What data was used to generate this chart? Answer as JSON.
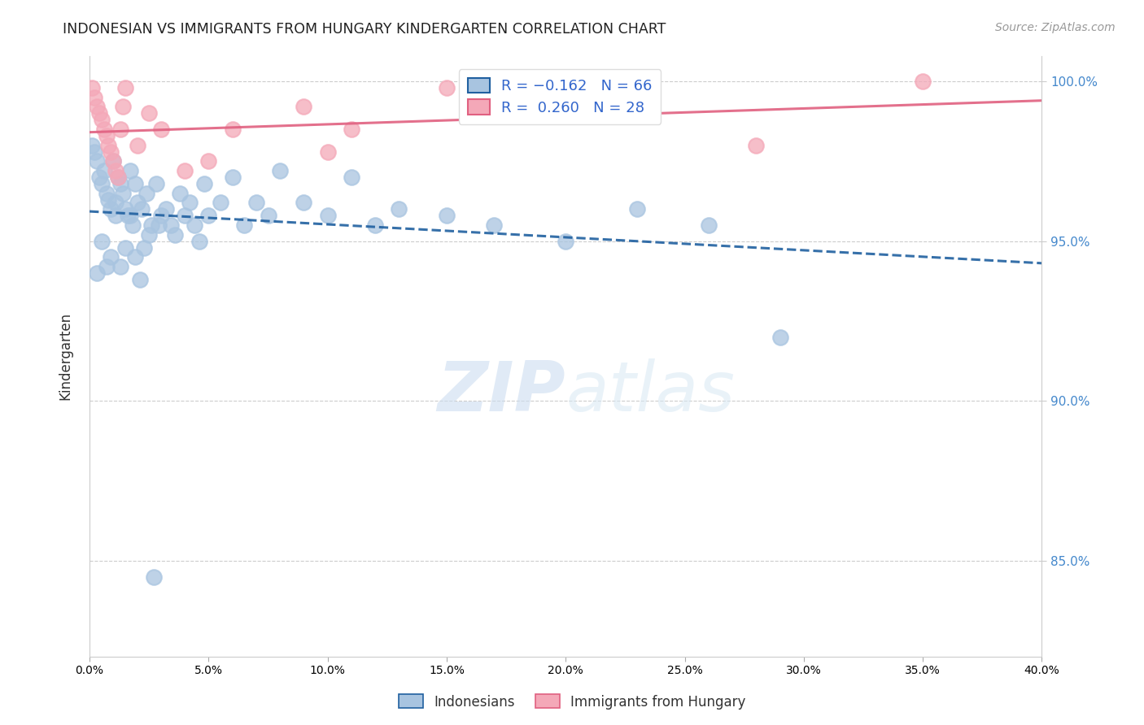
{
  "title": "INDONESIAN VS IMMIGRANTS FROM HUNGARY KINDERGARTEN CORRELATION CHART",
  "source": "Source: ZipAtlas.com",
  "ylabel": "Kindergarten",
  "xlim": [
    0.0,
    0.4
  ],
  "ylim": [
    0.82,
    1.008
  ],
  "yticks": [
    0.85,
    0.9,
    0.95,
    1.0
  ],
  "ytick_labels": [
    "85.0%",
    "90.0%",
    "95.0%",
    "100.0%"
  ],
  "xticks": [
    0.0,
    0.05,
    0.1,
    0.15,
    0.2,
    0.25,
    0.3,
    0.35,
    0.4
  ],
  "legend_r_blue": "R = −0.162",
  "legend_n_blue": "N = 66",
  "legend_r_pink": "R =  0.260",
  "legend_n_pink": "N = 28",
  "blue_color": "#a8c4e0",
  "pink_color": "#f4a8b8",
  "blue_line_color": "#2060a0",
  "pink_line_color": "#e06080",
  "watermark_zip": "ZIP",
  "watermark_atlas": "atlas",
  "indonesian_x": [
    0.001,
    0.002,
    0.003,
    0.004,
    0.005,
    0.006,
    0.007,
    0.008,
    0.009,
    0.01,
    0.011,
    0.012,
    0.013,
    0.014,
    0.015,
    0.016,
    0.017,
    0.018,
    0.019,
    0.02,
    0.022,
    0.024,
    0.026,
    0.028,
    0.03,
    0.032,
    0.034,
    0.036,
    0.038,
    0.04,
    0.042,
    0.044,
    0.046,
    0.048,
    0.05,
    0.055,
    0.06,
    0.065,
    0.07,
    0.075,
    0.08,
    0.09,
    0.1,
    0.11,
    0.12,
    0.13,
    0.15,
    0.17,
    0.2,
    0.23,
    0.26,
    0.29,
    0.003,
    0.005,
    0.007,
    0.009,
    0.011,
    0.013,
    0.015,
    0.017,
    0.019,
    0.021,
    0.023,
    0.025,
    0.027,
    0.029
  ],
  "indonesian_y": [
    0.98,
    0.978,
    0.975,
    0.97,
    0.968,
    0.972,
    0.965,
    0.963,
    0.96,
    0.975,
    0.962,
    0.97,
    0.968,
    0.965,
    0.96,
    0.958,
    0.972,
    0.955,
    0.968,
    0.962,
    0.96,
    0.965,
    0.955,
    0.968,
    0.958,
    0.96,
    0.955,
    0.952,
    0.965,
    0.958,
    0.962,
    0.955,
    0.95,
    0.968,
    0.958,
    0.962,
    0.97,
    0.955,
    0.962,
    0.958,
    0.972,
    0.962,
    0.958,
    0.97,
    0.955,
    0.96,
    0.958,
    0.955,
    0.95,
    0.96,
    0.955,
    0.92,
    0.94,
    0.95,
    0.942,
    0.945,
    0.958,
    0.942,
    0.948,
    0.958,
    0.945,
    0.938,
    0.948,
    0.952,
    0.845,
    0.955
  ],
  "hungary_x": [
    0.001,
    0.002,
    0.003,
    0.004,
    0.005,
    0.006,
    0.007,
    0.008,
    0.009,
    0.01,
    0.011,
    0.012,
    0.013,
    0.014,
    0.015,
    0.02,
    0.025,
    0.03,
    0.04,
    0.05,
    0.06,
    0.09,
    0.1,
    0.11,
    0.15,
    0.16,
    0.28,
    0.35
  ],
  "hungary_y": [
    0.998,
    0.995,
    0.992,
    0.99,
    0.988,
    0.985,
    0.983,
    0.98,
    0.978,
    0.975,
    0.972,
    0.97,
    0.985,
    0.992,
    0.998,
    0.98,
    0.99,
    0.985,
    0.972,
    0.975,
    0.985,
    0.992,
    0.978,
    0.985,
    0.998,
    0.992,
    0.98,
    1.0
  ]
}
